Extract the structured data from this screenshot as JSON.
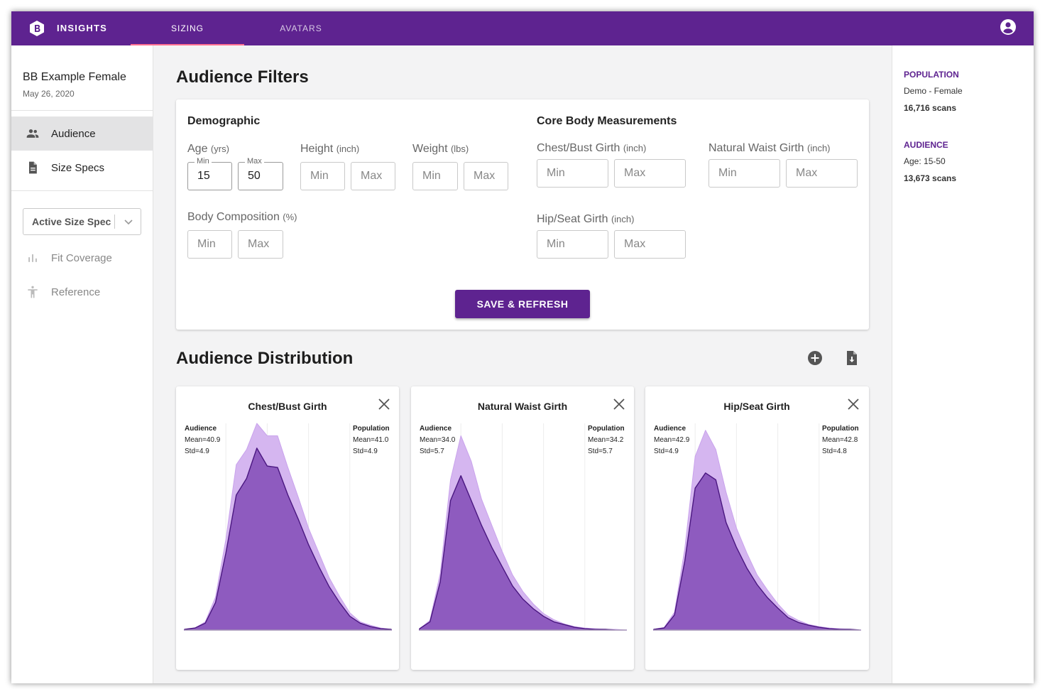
{
  "header": {
    "brand": "INSIGHTS",
    "tabs": [
      {
        "label": "SIZING",
        "active": true
      },
      {
        "label": "AVATARS",
        "active": false
      }
    ],
    "accent": "#5e2390",
    "tab_indicator": "#ff6f91"
  },
  "sidebar": {
    "project_name": "BB Example Female",
    "project_date": "May 26, 2020",
    "nav": [
      {
        "label": "Audience",
        "icon": "people-icon",
        "selected": true
      },
      {
        "label": "Size Specs",
        "icon": "document-icon",
        "selected": false
      }
    ],
    "size_spec_select": {
      "value": "Active Size Spec"
    },
    "sub_nav": [
      {
        "label": "Fit Coverage",
        "icon": "bar-chart-icon",
        "disabled": true
      },
      {
        "label": "Reference",
        "icon": "accessibility-icon",
        "disabled": true
      }
    ]
  },
  "filters": {
    "title": "Audience Filters",
    "demographic": {
      "title": "Demographic",
      "age": {
        "label": "Age",
        "unit": "(yrs)",
        "min_legend": "Min",
        "max_legend": "Max",
        "min_value": "15",
        "max_value": "50"
      },
      "height": {
        "label": "Height",
        "unit": "(inch)",
        "min_placeholder": "Min",
        "max_placeholder": "Max"
      },
      "weight": {
        "label": "Weight",
        "unit": "(lbs)",
        "min_placeholder": "Min",
        "max_placeholder": "Max"
      },
      "body_composition": {
        "label": "Body Composition",
        "unit": "(%)",
        "min_placeholder": "Min",
        "max_placeholder": "Max"
      }
    },
    "core": {
      "title": "Core Body Measurements",
      "chest": {
        "label": "Chest/Bust Girth",
        "unit": "(inch)",
        "min_placeholder": "Min",
        "max_placeholder": "Max"
      },
      "waist": {
        "label": "Natural Waist Girth",
        "unit": "(inch)",
        "min_placeholder": "Min",
        "max_placeholder": "Max"
      },
      "hip": {
        "label": "Hip/Seat Girth",
        "unit": "(inch)",
        "min_placeholder": "Min",
        "max_placeholder": "Max"
      }
    },
    "save_label": "SAVE & REFRESH"
  },
  "distribution": {
    "title": "Audience Distribution",
    "add_icon": "add-circle-icon",
    "download_icon": "file-download-icon",
    "audience_heading": "Audience",
    "population_heading": "Population",
    "colors": {
      "audience": "#8e5bbf",
      "population": "#d5b6f0",
      "audience_line": "#4a1780"
    }
  },
  "chart_data": [
    {
      "type": "area",
      "title": "Chest/Bust Girth",
      "audience": {
        "mean": "Mean=40.9",
        "std": "Std=4.9"
      },
      "population": {
        "mean": "Mean=41.0",
        "std": "Std=4.9"
      },
      "x": [
        0,
        5,
        10,
        15,
        20,
        25,
        30,
        35,
        40,
        45,
        50,
        55,
        60,
        65,
        70,
        75,
        80,
        85,
        90,
        95,
        100
      ],
      "series": [
        {
          "name": "Population",
          "values": [
            1,
            3,
            12,
            48,
            132,
            240,
            262,
            300,
            282,
            282,
            236,
            193,
            148,
            112,
            76,
            49,
            25,
            12,
            7,
            3,
            1
          ]
        },
        {
          "name": "Audience",
          "values": [
            1,
            3,
            10,
            40,
            112,
            196,
            220,
            264,
            238,
            236,
            196,
            161,
            124,
            92,
            63,
            40,
            20,
            10,
            5,
            2,
            1
          ]
        }
      ]
    },
    {
      "type": "area",
      "title": "Natural Waist Girth",
      "audience": {
        "mean": "Mean=34.0",
        "std": "Std=5.7"
      },
      "population": {
        "mean": "Mean=34.2",
        "std": "Std=5.7"
      },
      "x": [
        0,
        5,
        10,
        15,
        20,
        25,
        30,
        35,
        40,
        45,
        50,
        55,
        60,
        65,
        70,
        75,
        80,
        85,
        90,
        95,
        100
      ],
      "series": [
        {
          "name": "Population",
          "values": [
            2,
            14,
            82,
            218,
            282,
            245,
            190,
            152,
            114,
            80,
            56,
            38,
            24,
            15,
            9,
            5,
            3,
            2,
            1,
            1,
            0
          ]
        },
        {
          "name": "Audience",
          "values": [
            2,
            12,
            70,
            188,
            224,
            188,
            152,
            120,
            92,
            64,
            45,
            31,
            20,
            12,
            8,
            4,
            2,
            1,
            1,
            0,
            0
          ]
        }
      ]
    },
    {
      "type": "area",
      "title": "Hip/Seat Girth",
      "audience": {
        "mean": "Mean=42.9",
        "std": "Std=4.9"
      },
      "population": {
        "mean": "Mean=42.8",
        "std": "Std=4.8"
      },
      "x": [
        0,
        5,
        10,
        15,
        20,
        25,
        30,
        35,
        40,
        45,
        50,
        55,
        60,
        65,
        70,
        75,
        80,
        85,
        90,
        95,
        100
      ],
      "series": [
        {
          "name": "Population",
          "values": [
            1,
            4,
            26,
            118,
            252,
            290,
            262,
            200,
            148,
            112,
            80,
            58,
            38,
            22,
            14,
            8,
            5,
            3,
            2,
            1,
            0
          ]
        },
        {
          "name": "Audience",
          "values": [
            1,
            3,
            22,
            100,
            206,
            228,
            218,
            156,
            120,
            90,
            66,
            47,
            32,
            18,
            11,
            7,
            4,
            2,
            1,
            1,
            0
          ]
        }
      ]
    }
  ],
  "right_panel": {
    "population_heading": "POPULATION",
    "population_name": "Demo - Female",
    "population_scans": "16,716 scans",
    "audience_heading": "AUDIENCE",
    "audience_desc": "Age: 15-50",
    "audience_scans": "13,673 scans"
  }
}
